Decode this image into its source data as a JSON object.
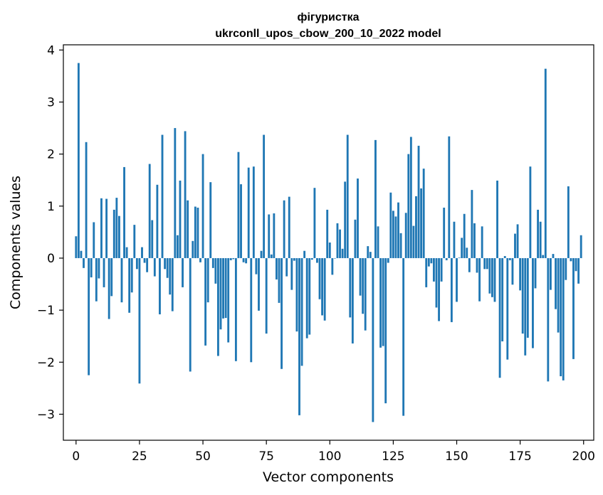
{
  "chart_data": {
    "type": "bar",
    "title": "фігуристка",
    "subtitle": "ukrconll_upos_cbow_200_10_2022 model",
    "xlabel": "Vector components",
    "ylabel": "Components values",
    "xlim": [
      -5,
      204
    ],
    "ylim": [
      -3.5,
      4.1
    ],
    "xticks": [
      0,
      25,
      50,
      75,
      100,
      125,
      150,
      175,
      200
    ],
    "yticks": [
      -3,
      -2,
      -1,
      0,
      1,
      2,
      3,
      4
    ],
    "ytick_labels": [
      "−3",
      "−2",
      "−1",
      "0",
      "1",
      "2",
      "3",
      "4"
    ],
    "bar_color": "#1f77b4",
    "grid": false,
    "x": [
      0,
      1,
      2,
      3,
      4,
      5,
      6,
      7,
      8,
      9,
      10,
      11,
      12,
      13,
      14,
      15,
      16,
      17,
      18,
      19,
      20,
      21,
      22,
      23,
      24,
      25,
      26,
      27,
      28,
      29,
      30,
      31,
      32,
      33,
      34,
      35,
      36,
      37,
      38,
      39,
      40,
      41,
      42,
      43,
      44,
      45,
      46,
      47,
      48,
      49,
      50,
      51,
      52,
      53,
      54,
      55,
      56,
      57,
      58,
      59,
      60,
      61,
      62,
      63,
      64,
      65,
      66,
      67,
      68,
      69,
      70,
      71,
      72,
      73,
      74,
      75,
      76,
      77,
      78,
      79,
      80,
      81,
      82,
      83,
      84,
      85,
      86,
      87,
      88,
      89,
      90,
      91,
      92,
      93,
      94,
      95,
      96,
      97,
      98,
      99,
      100,
      101,
      102,
      103,
      104,
      105,
      106,
      107,
      108,
      109,
      110,
      111,
      112,
      113,
      114,
      115,
      116,
      117,
      118,
      119,
      120,
      121,
      122,
      123,
      124,
      125,
      126,
      127,
      128,
      129,
      130,
      131,
      132,
      133,
      134,
      135,
      136,
      137,
      138,
      139,
      140,
      141,
      142,
      143,
      144,
      145,
      146,
      147,
      148,
      149,
      150,
      151,
      152,
      153,
      154,
      155,
      156,
      157,
      158,
      159,
      160,
      161,
      162,
      163,
      164,
      165,
      166,
      167,
      168,
      169,
      170,
      171,
      172,
      173,
      174,
      175,
      176,
      177,
      178,
      179,
      180,
      181,
      182,
      183,
      184,
      185,
      186,
      187,
      188,
      189,
      190,
      191,
      192,
      193,
      194,
      195,
      196,
      197,
      198,
      199
    ],
    "values": [
      0.42,
      3.75,
      0.14,
      -0.19,
      2.23,
      -2.25,
      -0.37,
      0.69,
      -0.83,
      -0.39,
      1.15,
      -0.56,
      1.14,
      -1.17,
      -0.73,
      0.93,
      1.16,
      0.81,
      -0.85,
      1.75,
      0.21,
      -1.05,
      -0.66,
      0.64,
      -0.21,
      -2.41,
      0.21,
      -0.09,
      -0.27,
      1.81,
      0.73,
      -0.35,
      1.41,
      -1.08,
      2.37,
      -0.21,
      -0.38,
      -0.7,
      -1.02,
      2.5,
      0.44,
      1.49,
      -0.56,
      2.44,
      1.11,
      -2.18,
      0.33,
      0.99,
      0.97,
      -0.08,
      2.0,
      -1.68,
      -0.85,
      1.46,
      -0.19,
      -0.49,
      -1.88,
      -1.37,
      -1.16,
      -1.15,
      -1.62,
      -0.04,
      -0.02,
      -1.98,
      2.04,
      1.42,
      -0.08,
      -0.1,
      1.74,
      -2.0,
      1.76,
      -0.31,
      -1.01,
      0.14,
      2.37,
      -1.45,
      0.84,
      0.07,
      0.86,
      -0.41,
      -0.86,
      -2.13,
      1.11,
      -0.35,
      1.18,
      -0.61,
      -0.05,
      -1.41,
      -3.02,
      -2.07,
      0.14,
      -1.54,
      -1.47,
      -0.03,
      1.35,
      -0.09,
      -0.79,
      -1.1,
      -1.2,
      0.93,
      0.3,
      -0.32,
      0.0,
      0.67,
      0.55,
      0.18,
      1.47,
      2.37,
      -1.14,
      -1.64,
      0.74,
      1.53,
      -0.72,
      -1.07,
      -1.39,
      0.23,
      0.12,
      -3.15,
      2.27,
      0.61,
      -1.72,
      -1.69,
      -2.79,
      -0.09,
      1.26,
      0.91,
      0.8,
      1.07,
      0.48,
      -3.03,
      0.87,
      2.0,
      2.33,
      0.62,
      1.19,
      2.16,
      1.34,
      1.72,
      -0.56,
      -0.16,
      -0.1,
      -0.45,
      -0.95,
      -1.21,
      -0.45,
      0.97,
      -0.04,
      2.34,
      -1.23,
      0.7,
      -0.84,
      0.01,
      0.39,
      0.85,
      0.2,
      -0.27,
      1.31,
      0.67,
      -0.28,
      -0.83,
      0.61,
      -0.21,
      -0.21,
      -0.68,
      -0.75,
      -0.84,
      1.49,
      -2.3,
      -1.6,
      0.04,
      -1.95,
      -0.04,
      -0.51,
      0.47,
      0.65,
      -0.62,
      -1.45,
      -1.87,
      -1.53,
      1.76,
      -1.73,
      -0.58,
      0.93,
      0.7,
      0.06,
      3.64,
      -2.37,
      -0.61,
      0.08,
      -0.98,
      -1.43,
      -2.27,
      -2.35,
      -0.42,
      1.38,
      -0.06,
      -1.94,
      -0.25,
      -0.49,
      0.44
    ]
  }
}
